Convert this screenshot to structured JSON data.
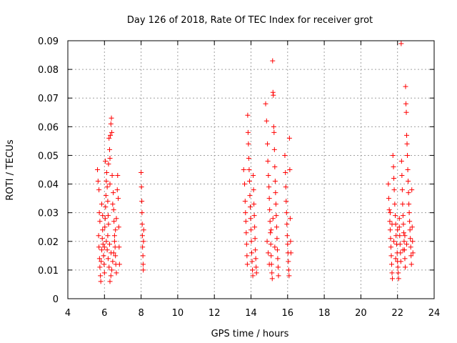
{
  "chart_data": {
    "type": "scatter",
    "title": "Day 126 of 2018, Rate Of TEC Index for receiver grot",
    "xlabel": "GPS time / hours",
    "ylabel": "ROTI / TECUs",
    "xlim": [
      4,
      24
    ],
    "ylim": [
      0,
      0.09
    ],
    "xticks": [
      4,
      6,
      8,
      10,
      12,
      14,
      16,
      18,
      20,
      22,
      24
    ],
    "yticks": [
      0,
      0.01,
      0.02,
      0.03,
      0.04,
      0.05,
      0.06,
      0.07,
      0.08,
      0.09
    ],
    "xtick_labels": [
      "4",
      "6",
      "8",
      "10",
      "12",
      "14",
      "16",
      "18",
      "20",
      "22",
      "24"
    ],
    "ytick_labels": [
      "0",
      "0.01",
      "0.02",
      "0.03",
      "0.04",
      "0.05",
      "0.06",
      "0.07",
      "0.08",
      "0.09"
    ],
    "grid": true,
    "marker": "+",
    "marker_color": "#ff0000",
    "series": [
      {
        "name": "ROTI",
        "points": [
          [
            5.62,
            0.045
          ],
          [
            5.65,
            0.041
          ],
          [
            5.7,
            0.038
          ],
          [
            5.72,
            0.03
          ],
          [
            5.75,
            0.027
          ],
          [
            5.68,
            0.022
          ],
          [
            5.7,
            0.018
          ],
          [
            5.73,
            0.014
          ],
          [
            5.75,
            0.011
          ],
          [
            5.78,
            0.008
          ],
          [
            5.8,
            0.006
          ],
          [
            5.82,
            0.013
          ],
          [
            5.85,
            0.017
          ],
          [
            5.88,
            0.021
          ],
          [
            5.9,
            0.024
          ],
          [
            5.92,
            0.019
          ],
          [
            5.95,
            0.015
          ],
          [
            5.98,
            0.012
          ],
          [
            6.0,
            0.009
          ],
          [
            6.02,
            0.025
          ],
          [
            6.04,
            0.028
          ],
          [
            6.06,
            0.032
          ],
          [
            6.08,
            0.036
          ],
          [
            6.1,
            0.041
          ],
          [
            6.12,
            0.044
          ],
          [
            6.15,
            0.039
          ],
          [
            6.18,
            0.034
          ],
          [
            6.2,
            0.029
          ],
          [
            6.22,
            0.026
          ],
          [
            6.25,
            0.056
          ],
          [
            6.28,
            0.052
          ],
          [
            6.3,
            0.049
          ],
          [
            6.32,
            0.057
          ],
          [
            6.35,
            0.061
          ],
          [
            6.38,
            0.063
          ],
          [
            6.4,
            0.058
          ],
          [
            6.42,
            0.043
          ],
          [
            6.45,
            0.033
          ],
          [
            6.48,
            0.037
          ],
          [
            6.5,
            0.031
          ],
          [
            6.52,
            0.027
          ],
          [
            6.55,
            0.022
          ],
          [
            6.58,
            0.018
          ],
          [
            6.6,
            0.015
          ],
          [
            6.62,
            0.012
          ],
          [
            6.65,
            0.009
          ],
          [
            6.3,
            0.006
          ],
          [
            6.35,
            0.008
          ],
          [
            6.4,
            0.01
          ],
          [
            6.45,
            0.013
          ],
          [
            6.5,
            0.016
          ],
          [
            6.55,
            0.02
          ],
          [
            6.6,
            0.024
          ],
          [
            6.65,
            0.028
          ],
          [
            6.7,
            0.038
          ],
          [
            6.72,
            0.043
          ],
          [
            6.75,
            0.035
          ],
          [
            6.78,
            0.025
          ],
          [
            6.8,
            0.018
          ],
          [
            6.82,
            0.012
          ],
          [
            6.1,
            0.02
          ],
          [
            6.15,
            0.017
          ],
          [
            6.2,
            0.014
          ],
          [
            6.25,
            0.011
          ],
          [
            6.0,
            0.018
          ],
          [
            5.9,
            0.029
          ],
          [
            5.85,
            0.033
          ],
          [
            6.05,
            0.048
          ],
          [
            6.22,
            0.047
          ],
          [
            6.3,
            0.04
          ],
          [
            6.18,
            0.022
          ],
          [
            6.28,
            0.019
          ],
          [
            6.36,
            0.016
          ],
          [
            8.0,
            0.044
          ],
          [
            8.02,
            0.039
          ],
          [
            8.04,
            0.034
          ],
          [
            8.05,
            0.03
          ],
          [
            8.06,
            0.026
          ],
          [
            8.07,
            0.022
          ],
          [
            8.08,
            0.018
          ],
          [
            8.1,
            0.015
          ],
          [
            8.11,
            0.012
          ],
          [
            8.12,
            0.01
          ],
          [
            8.13,
            0.02
          ],
          [
            8.14,
            0.024
          ],
          [
            13.6,
            0.045
          ],
          [
            13.65,
            0.04
          ],
          [
            13.68,
            0.034
          ],
          [
            13.7,
            0.03
          ],
          [
            13.72,
            0.027
          ],
          [
            13.74,
            0.023
          ],
          [
            13.76,
            0.019
          ],
          [
            13.78,
            0.015
          ],
          [
            13.8,
            0.012
          ],
          [
            13.82,
            0.064
          ],
          [
            13.84,
            0.058
          ],
          [
            13.86,
            0.054
          ],
          [
            13.88,
            0.049
          ],
          [
            13.9,
            0.045
          ],
          [
            13.92,
            0.041
          ],
          [
            13.94,
            0.036
          ],
          [
            13.96,
            0.032
          ],
          [
            13.98,
            0.028
          ],
          [
            14.0,
            0.024
          ],
          [
            14.02,
            0.02
          ],
          [
            14.04,
            0.016
          ],
          [
            14.06,
            0.013
          ],
          [
            14.08,
            0.01
          ],
          [
            14.1,
            0.008
          ],
          [
            14.12,
            0.043
          ],
          [
            14.14,
            0.038
          ],
          [
            14.16,
            0.033
          ],
          [
            14.18,
            0.029
          ],
          [
            14.2,
            0.025
          ],
          [
            14.22,
            0.021
          ],
          [
            14.24,
            0.017
          ],
          [
            14.26,
            0.014
          ],
          [
            14.28,
            0.011
          ],
          [
            14.3,
            0.009
          ],
          [
            14.8,
            0.068
          ],
          [
            14.85,
            0.062
          ],
          [
            14.9,
            0.054
          ],
          [
            14.92,
            0.048
          ],
          [
            14.95,
            0.043
          ],
          [
            14.98,
            0.039
          ],
          [
            15.0,
            0.035
          ],
          [
            15.02,
            0.031
          ],
          [
            15.04,
            0.027
          ],
          [
            15.06,
            0.023
          ],
          [
            15.08,
            0.019
          ],
          [
            15.1,
            0.015
          ],
          [
            15.12,
            0.012
          ],
          [
            15.14,
            0.009
          ],
          [
            15.16,
            0.007
          ],
          [
            15.18,
            0.083
          ],
          [
            15.2,
            0.072
          ],
          [
            15.22,
            0.071
          ],
          [
            15.24,
            0.06
          ],
          [
            15.26,
            0.058
          ],
          [
            15.28,
            0.052
          ],
          [
            15.3,
            0.046
          ],
          [
            15.32,
            0.041
          ],
          [
            15.34,
            0.037
          ],
          [
            15.36,
            0.033
          ],
          [
            15.38,
            0.029
          ],
          [
            15.4,
            0.025
          ],
          [
            15.42,
            0.021
          ],
          [
            15.44,
            0.017
          ],
          [
            15.46,
            0.014
          ],
          [
            15.48,
            0.011
          ],
          [
            15.5,
            0.008
          ],
          [
            14.88,
            0.02
          ],
          [
            14.94,
            0.016
          ],
          [
            15.0,
            0.012
          ],
          [
            15.1,
            0.024
          ],
          [
            15.2,
            0.028
          ],
          [
            15.3,
            0.018
          ],
          [
            15.85,
            0.05
          ],
          [
            15.88,
            0.044
          ],
          [
            15.9,
            0.039
          ],
          [
            15.92,
            0.034
          ],
          [
            15.94,
            0.03
          ],
          [
            15.96,
            0.026
          ],
          [
            15.98,
            0.022
          ],
          [
            16.0,
            0.019
          ],
          [
            16.02,
            0.016
          ],
          [
            16.04,
            0.013
          ],
          [
            16.06,
            0.01
          ],
          [
            16.08,
            0.008
          ],
          [
            16.1,
            0.056
          ],
          [
            16.12,
            0.045
          ],
          [
            16.14,
            0.028
          ],
          [
            16.16,
            0.02
          ],
          [
            16.18,
            0.016
          ],
          [
            21.5,
            0.04
          ],
          [
            21.52,
            0.035
          ],
          [
            21.55,
            0.031
          ],
          [
            21.58,
            0.027
          ],
          [
            21.6,
            0.024
          ],
          [
            21.62,
            0.021
          ],
          [
            21.64,
            0.018
          ],
          [
            21.66,
            0.015
          ],
          [
            21.68,
            0.012
          ],
          [
            21.7,
            0.009
          ],
          [
            21.72,
            0.007
          ],
          [
            21.75,
            0.05
          ],
          [
            21.78,
            0.046
          ],
          [
            21.8,
            0.042
          ],
          [
            21.82,
            0.038
          ],
          [
            21.85,
            0.033
          ],
          [
            21.88,
            0.029
          ],
          [
            21.9,
            0.026
          ],
          [
            21.92,
            0.022
          ],
          [
            21.95,
            0.019
          ],
          [
            21.98,
            0.016
          ],
          [
            22.0,
            0.013
          ],
          [
            22.02,
            0.011
          ],
          [
            22.04,
            0.009
          ],
          [
            22.06,
            0.007
          ],
          [
            22.1,
            0.025
          ],
          [
            22.12,
            0.022
          ],
          [
            22.14,
            0.019
          ],
          [
            22.16,
            0.016
          ],
          [
            22.18,
            0.013
          ],
          [
            22.2,
            0.089
          ],
          [
            22.22,
            0.048
          ],
          [
            22.24,
            0.043
          ],
          [
            22.26,
            0.038
          ],
          [
            22.28,
            0.033
          ],
          [
            22.3,
            0.029
          ],
          [
            22.32,
            0.026
          ],
          [
            22.34,
            0.023
          ],
          [
            22.36,
            0.02
          ],
          [
            22.38,
            0.017
          ],
          [
            22.4,
            0.014
          ],
          [
            22.42,
            0.011
          ],
          [
            22.44,
            0.074
          ],
          [
            22.46,
            0.068
          ],
          [
            22.48,
            0.065
          ],
          [
            22.5,
            0.057
          ],
          [
            22.52,
            0.054
          ],
          [
            22.54,
            0.05
          ],
          [
            22.56,
            0.045
          ],
          [
            22.58,
            0.041
          ],
          [
            22.6,
            0.037
          ],
          [
            22.62,
            0.033
          ],
          [
            22.64,
            0.03
          ],
          [
            22.66,
            0.027
          ],
          [
            22.68,
            0.024
          ],
          [
            22.7,
            0.021
          ],
          [
            22.72,
            0.018
          ],
          [
            22.74,
            0.015
          ],
          [
            22.76,
            0.012
          ],
          [
            22.78,
            0.038
          ],
          [
            22.8,
            0.025
          ],
          [
            22.82,
            0.02
          ],
          [
            22.84,
            0.016
          ],
          [
            21.6,
            0.03
          ],
          [
            21.7,
            0.026
          ],
          [
            21.8,
            0.02
          ],
          [
            21.9,
            0.014
          ],
          [
            22.0,
            0.024
          ],
          [
            22.1,
            0.028
          ],
          [
            22.3,
            0.017
          ],
          [
            22.4,
            0.022
          ],
          [
            22.5,
            0.019
          ]
        ]
      }
    ]
  }
}
